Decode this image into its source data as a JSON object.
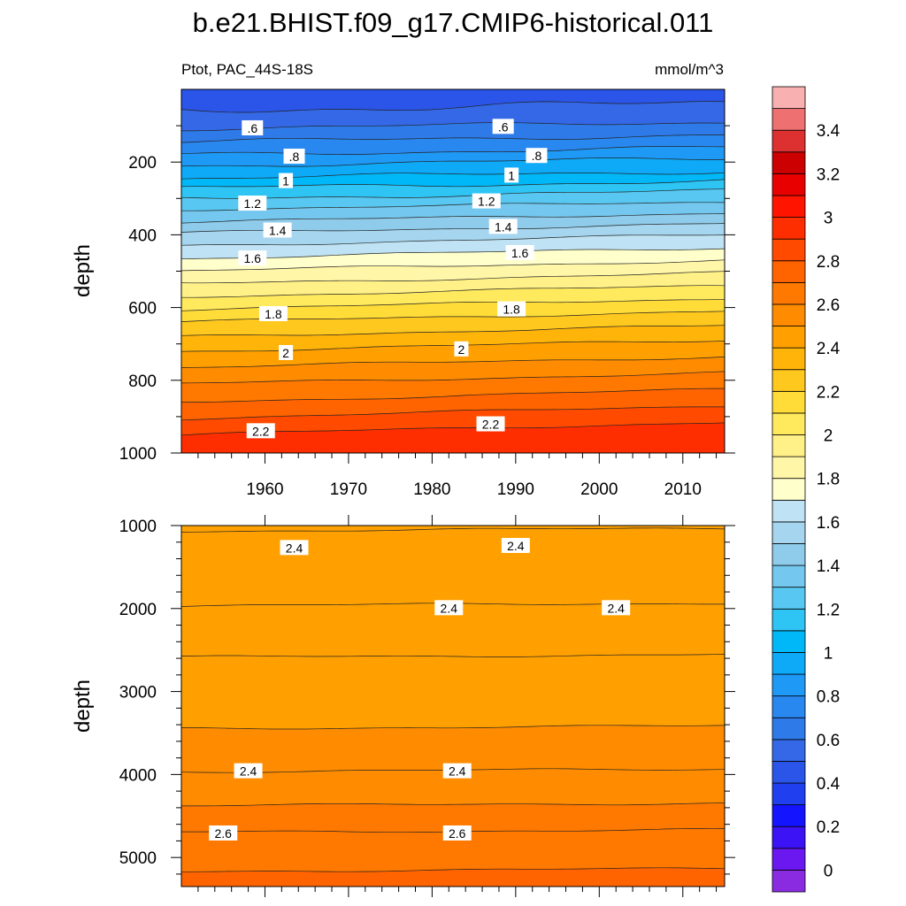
{
  "chart_data": [
    {
      "type": "heatmap",
      "title": "b.e21.BHIST.f09_g17.CMIP6-historical.011",
      "subtitle_left": "Ptot, PAC_44S-18S",
      "subtitle_right": "mmol/m^3",
      "ylabel": "depth",
      "xlim": [
        1950,
        2015
      ],
      "ylim": [
        0,
        1000
      ],
      "x_ticks": [
        1960,
        1970,
        1980,
        1990,
        2000,
        2010
      ],
      "x_tick_labels": [
        "1960",
        "1970",
        "1980",
        "1990",
        "2000",
        "2010"
      ],
      "y_ticks": [
        200,
        400,
        600,
        800,
        1000
      ],
      "y_tick_labels": [
        "200",
        "400",
        "600",
        "800",
        "1000"
      ],
      "contour_depths_1950": [
        55,
        108,
        145,
        180,
        210,
        245,
        272,
        300,
        330,
        365,
        395,
        430,
        465,
        500,
        535,
        570,
        605,
        640,
        680,
        720,
        765,
        810,
        860,
        905,
        950
      ],
      "contour_depths_2015": [
        40,
        90,
        125,
        160,
        190,
        225,
        252,
        280,
        310,
        340,
        370,
        400,
        435,
        470,
        505,
        540,
        575,
        610,
        650,
        690,
        735,
        780,
        825,
        870,
        915
      ],
      "contour_labels": [
        {
          "text": ".6",
          "x": 1958.5,
          "y": 107
        },
        {
          "text": ".6",
          "x": 1988.5,
          "y": 103
        },
        {
          "text": ".8",
          "x": 1963.5,
          "y": 185
        },
        {
          "text": ".8",
          "x": 1992.5,
          "y": 183
        },
        {
          "text": "1",
          "x": 1962.5,
          "y": 252
        },
        {
          "text": "1",
          "x": 1989.5,
          "y": 237
        },
        {
          "text": "1.2",
          "x": 1958.5,
          "y": 314
        },
        {
          "text": "1.2",
          "x": 1986.5,
          "y": 308
        },
        {
          "text": "1.4",
          "x": 1961.5,
          "y": 388
        },
        {
          "text": "1.4",
          "x": 1988.5,
          "y": 378
        },
        {
          "text": "1.6",
          "x": 1958.5,
          "y": 465
        },
        {
          "text": "1.6",
          "x": 1990.5,
          "y": 450
        },
        {
          "text": "1.8",
          "x": 1961.0,
          "y": 618
        },
        {
          "text": "1.8",
          "x": 1989.5,
          "y": 605
        },
        {
          "text": "2",
          "x": 1962.5,
          "y": 725
        },
        {
          "text": "2",
          "x": 1983.5,
          "y": 715
        },
        {
          "text": "2.2",
          "x": 1959.5,
          "y": 940
        },
        {
          "text": "2.2",
          "x": 1987.0,
          "y": 921
        }
      ]
    },
    {
      "type": "heatmap",
      "ylabel": "depth",
      "xlim": [
        1950,
        2015
      ],
      "ylim": [
        1000,
        5350
      ],
      "y_ticks": [
        1000,
        2000,
        3000,
        4000,
        5000
      ],
      "y_tick_labels": [
        "1000",
        "2000",
        "3000",
        "4000",
        "5000"
      ],
      "contour_lines": [
        1050,
        1950,
        2570,
        3430,
        3950,
        4360,
        4680,
        5150
      ],
      "band_values": [
        2.4,
        2.45,
        2.4,
        2.45,
        2.5,
        2.55,
        2.6,
        2.65,
        2.7
      ],
      "contour_labels": [
        {
          "text": "2.4",
          "x": 1963.5,
          "y": 1270
        },
        {
          "text": "2.4",
          "x": 1990.0,
          "y": 1245
        },
        {
          "text": "2.4",
          "x": 1982.0,
          "y": 1995
        },
        {
          "text": "2.4",
          "x": 2002.0,
          "y": 1995
        },
        {
          "text": "2.4",
          "x": 1958.0,
          "y": 3960
        },
        {
          "text": "2.4",
          "x": 1983.0,
          "y": 3960
        },
        {
          "text": "2.6",
          "x": 1955.0,
          "y": 4710
        },
        {
          "text": "2.6",
          "x": 1983.0,
          "y": 4710
        }
      ]
    }
  ],
  "colorbar": {
    "levels": [
      0,
      0.1,
      0.2,
      0.3,
      0.4,
      0.5,
      0.6,
      0.7,
      0.8,
      0.9,
      1.0,
      1.1,
      1.2,
      1.3,
      1.4,
      1.5,
      1.6,
      1.7,
      1.8,
      1.9,
      2.0,
      2.1,
      2.2,
      2.3,
      2.4,
      2.5,
      2.6,
      2.7,
      2.8,
      2.9,
      3.0,
      3.1,
      3.2,
      3.3,
      3.4,
      3.5
    ],
    "colors": [
      "#8a2be2",
      "#6a17f0",
      "#3b13f5",
      "#1414ff",
      "#2040f0",
      "#2a55e8",
      "#3468e6",
      "#2f7ae9",
      "#2888f0",
      "#1f99f6",
      "#0eaaf8",
      "#00b8f8",
      "#2ec5f5",
      "#58c8f2",
      "#74c8ef",
      "#8fcbea",
      "#a6d6ef",
      "#bfe3f4",
      "#ffffcc",
      "#fff6a8",
      "#fff088",
      "#ffea5e",
      "#ffdc38",
      "#ffc81e",
      "#ffb40a",
      "#ffa000",
      "#ff8c00",
      "#ff7800",
      "#ff6400",
      "#ff4a00",
      "#ff2e00",
      "#ff1400",
      "#e80000",
      "#cc0000",
      "#dd3030",
      "#ee7070",
      "#f8b0b0"
    ],
    "tick_values": [
      0,
      0.2,
      0.4,
      0.6,
      0.8,
      1,
      1.2,
      1.4,
      1.6,
      1.8,
      2,
      2.2,
      2.4,
      2.6,
      2.8,
      3,
      3.2,
      3.4
    ],
    "tick_labels": [
      "0",
      "0.2",
      "0.4",
      "0.6",
      "0.8",
      "1",
      "1.2",
      "1.4",
      "1.6",
      "1.8",
      "2",
      "2.2",
      "2.4",
      "2.6",
      "2.8",
      "3",
      "3.2",
      "3.4"
    ]
  }
}
